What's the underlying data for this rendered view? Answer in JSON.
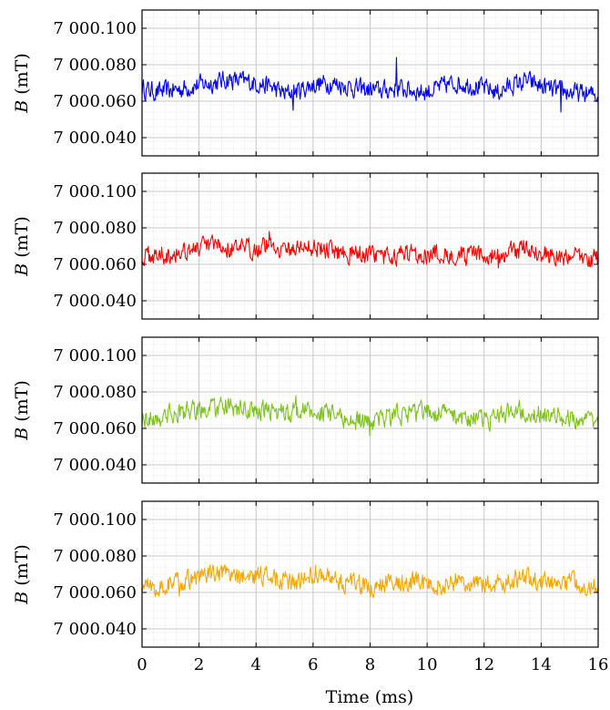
{
  "chart_data": {
    "type": "line",
    "xlabel": "Time (ms)",
    "xlim": [
      0,
      16
    ],
    "x_ticks": [
      0,
      2,
      4,
      6,
      8,
      10,
      12,
      14,
      16
    ],
    "x_tick_labels": [
      "0",
      "2",
      "4",
      "6",
      "8",
      "10",
      "12",
      "14",
      "16"
    ],
    "grid": true,
    "panels": [
      {
        "ylabel_symbol": "B",
        "ylabel_unit": "(mT)",
        "ylim": [
          7000.03,
          7000.11
        ],
        "y_ticks": [
          7000.04,
          7000.06,
          7000.08,
          7000.1
        ],
        "y_tick_labels": [
          "7 000.040",
          "7 000.060",
          "7 000.080",
          "7 000.100"
        ],
        "series": {
          "color": "#0000ff",
          "x": [
            0,
            0.5,
            1,
            1.5,
            2,
            2.5,
            3,
            3.5,
            4,
            4.5,
            5,
            5.5,
            6,
            6.5,
            7,
            7.5,
            8,
            8.5,
            9,
            9.5,
            10,
            10.5,
            11,
            11.5,
            12,
            12.5,
            13,
            13.5,
            14,
            14.5,
            15,
            15.5,
            16
          ],
          "y": [
            7000.067,
            7000.065,
            7000.066,
            7000.067,
            7000.069,
            7000.07,
            7000.072,
            7000.071,
            7000.07,
            7000.068,
            7000.064,
            7000.066,
            7000.069,
            7000.07,
            7000.069,
            7000.067,
            7000.066,
            7000.066,
            7000.067,
            7000.066,
            7000.065,
            7000.068,
            7000.07,
            7000.069,
            7000.067,
            7000.065,
            7000.069,
            7000.071,
            7000.068,
            7000.066,
            7000.065,
            7000.064,
            7000.063
          ],
          "spikes": [
            [
              5.3,
              7000.055
            ],
            [
              8.93,
              7000.084
            ],
            [
              14.7,
              7000.054
            ]
          ]
        }
      },
      {
        "ylabel_symbol": "B",
        "ylabel_unit": "(mT)",
        "ylim": [
          7000.03,
          7000.11
        ],
        "y_ticks": [
          7000.04,
          7000.06,
          7000.08,
          7000.1
        ],
        "y_tick_labels": [
          "7 000.040",
          "7 000.060",
          "7 000.080",
          "7 000.100"
        ],
        "series": {
          "color": "#ff0000",
          "x": [
            0,
            0.5,
            1,
            1.5,
            2,
            2.5,
            3,
            3.5,
            4,
            4.5,
            5,
            5.5,
            6,
            6.5,
            7,
            7.5,
            8,
            8.5,
            9,
            9.5,
            10,
            10.5,
            11,
            11.5,
            12,
            12.5,
            13,
            13.5,
            14,
            14.5,
            15,
            15.5,
            16
          ],
          "y": [
            7000.064,
            7000.065,
            7000.066,
            7000.068,
            7000.069,
            7000.07,
            7000.069,
            7000.068,
            7000.069,
            7000.071,
            7000.068,
            7000.069,
            7000.07,
            7000.068,
            7000.067,
            7000.066,
            7000.065,
            7000.064,
            7000.065,
            7000.066,
            7000.066,
            7000.065,
            7000.066,
            7000.064,
            7000.065,
            7000.064,
            7000.067,
            7000.069,
            7000.066,
            7000.064,
            7000.065,
            7000.063,
            7000.063
          ],
          "spikes": [
            [
              4.45,
              7000.078
            ],
            [
              12.5,
              7000.058
            ]
          ]
        }
      },
      {
        "ylabel_symbol": "B",
        "ylabel_unit": "(mT)",
        "ylim": [
          7000.03,
          7000.11
        ],
        "y_ticks": [
          7000.04,
          7000.06,
          7000.08,
          7000.1
        ],
        "y_tick_labels": [
          "7 000.040",
          "7 000.060",
          "7 000.080",
          "7 000.100"
        ],
        "series": {
          "color": "#7fc31c",
          "x": [
            0,
            0.5,
            1,
            1.5,
            2,
            2.5,
            3,
            3.5,
            4,
            4.5,
            5,
            5.5,
            6,
            6.5,
            7,
            7.5,
            8,
            8.5,
            9,
            9.5,
            10,
            10.5,
            11,
            11.5,
            12,
            12.5,
            13,
            13.5,
            14,
            14.5,
            15,
            15.5,
            16
          ],
          "y": [
            7000.066,
            7000.065,
            7000.068,
            7000.069,
            7000.07,
            7000.071,
            7000.071,
            7000.07,
            7000.069,
            7000.07,
            7000.068,
            7000.07,
            7000.069,
            7000.068,
            7000.066,
            7000.064,
            7000.063,
            7000.066,
            7000.068,
            7000.068,
            7000.07,
            7000.068,
            7000.067,
            7000.066,
            7000.064,
            7000.066,
            7000.071,
            7000.07,
            7000.068,
            7000.066,
            7000.066,
            7000.065,
            7000.065
          ],
          "spikes": [
            [
              5.4,
              7000.078
            ],
            [
              8,
              7000.056
            ]
          ]
        }
      },
      {
        "ylabel_symbol": "B",
        "ylabel_unit": "(mT)",
        "ylim": [
          7000.03,
          7000.11
        ],
        "y_ticks": [
          7000.04,
          7000.06,
          7000.08,
          7000.1
        ],
        "y_tick_labels": [
          "7 000.040",
          "7 000.060",
          "7 000.080",
          "7 000.100"
        ],
        "series": {
          "color": "#f5a800",
          "x": [
            0,
            0.5,
            1,
            1.5,
            2,
            2.5,
            3,
            3.5,
            4,
            4.5,
            5,
            5.5,
            6,
            6.5,
            7,
            7.5,
            8,
            8.5,
            9,
            9.5,
            10,
            10.5,
            11,
            11.5,
            12,
            12.5,
            13,
            13.5,
            14,
            14.5,
            15,
            15.5,
            16
          ],
          "y": [
            7000.064,
            7000.063,
            7000.065,
            7000.066,
            7000.069,
            7000.07,
            7000.069,
            7000.068,
            7000.069,
            7000.069,
            7000.066,
            7000.066,
            7000.07,
            7000.069,
            7000.066,
            7000.065,
            7000.062,
            7000.065,
            7000.066,
            7000.066,
            7000.065,
            7000.064,
            7000.066,
            7000.065,
            7000.064,
            7000.065,
            7000.067,
            7000.068,
            7000.066,
            7000.065,
            7000.066,
            7000.064,
            7000.064
          ],
          "spikes": [
            [
              6.1,
              7000.075
            ],
            [
              1.3,
              7000.058
            ],
            [
              8.1,
              7000.057
            ]
          ]
        }
      }
    ]
  }
}
